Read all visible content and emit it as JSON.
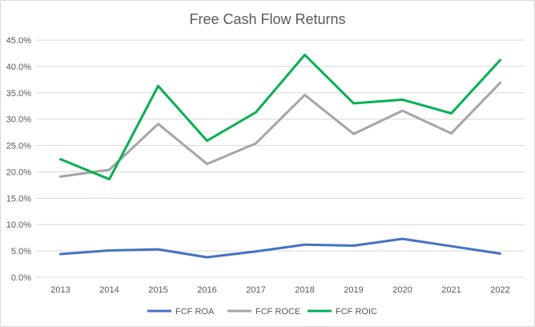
{
  "chart_data": {
    "type": "line",
    "title": "Free Cash Flow Returns",
    "xlabel": "",
    "ylabel": "",
    "categories": [
      "2013",
      "2014",
      "2015",
      "2016",
      "2017",
      "2018",
      "2019",
      "2020",
      "2021",
      "2022"
    ],
    "ylim": [
      0,
      45
    ],
    "y_ticks": [
      "0.0%",
      "5.0%",
      "10.0%",
      "15.0%",
      "20.0%",
      "25.0%",
      "30.0%",
      "35.0%",
      "40.0%",
      "45.0%"
    ],
    "grid": true,
    "legend_position": "bottom",
    "series": [
      {
        "name": "FCF ROA",
        "color": "#4472c4",
        "values": [
          4.4,
          5.1,
          5.3,
          3.8,
          4.9,
          6.2,
          6.0,
          7.3,
          5.9,
          4.5
        ]
      },
      {
        "name": "FCF ROCE",
        "color": "#a5a5a5",
        "values": [
          19.1,
          20.4,
          29.1,
          21.5,
          25.4,
          34.6,
          27.2,
          31.6,
          27.3,
          36.9
        ]
      },
      {
        "name": "FCF ROIC",
        "color": "#00b050",
        "values": [
          22.4,
          18.6,
          36.3,
          25.9,
          31.3,
          42.2,
          33.0,
          33.7,
          31.1,
          41.2
        ]
      }
    ]
  }
}
